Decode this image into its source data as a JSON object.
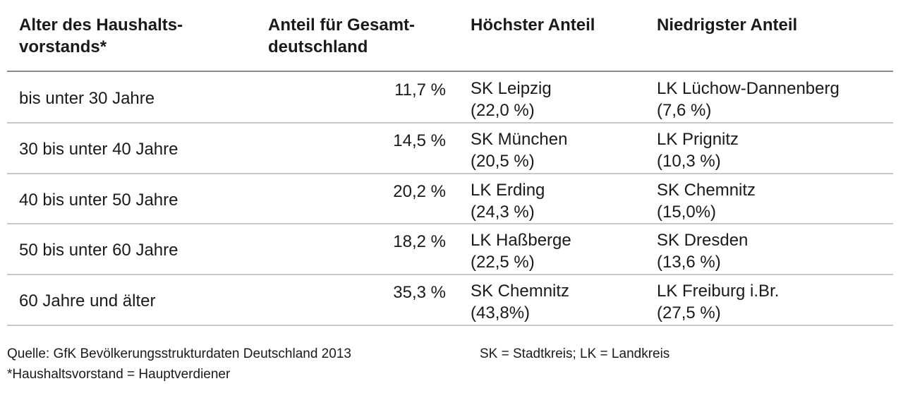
{
  "table": {
    "header": [
      [
        "Alter des Haushalts-",
        "vorstands*"
      ],
      [
        "Anteil für Gesamt-",
        "deutschland"
      ],
      [
        "Höchster Anteil"
      ],
      [
        "Niedrigster Anteil"
      ]
    ],
    "rows": [
      [
        "bis unter 30 Jahre",
        "11,7 %",
        [
          "SK Leipzig",
          "(22,0 %)"
        ],
        [
          "LK Lüchow-Dannenberg",
          "(7,6 %)"
        ]
      ],
      [
        "30 bis unter 40 Jahre",
        "14,5 %",
        [
          "SK München",
          "(20,5 %)"
        ],
        [
          "LK Prignitz",
          "(10,3 %)"
        ]
      ],
      [
        "40 bis unter 50 Jahre",
        "20,2 %",
        [
          "LK Erding",
          "(24,3 %)"
        ],
        [
          "SK Chemnitz",
          "(15,0%)"
        ]
      ],
      [
        "50 bis unter 60 Jahre",
        "18,2 %",
        [
          "LK Haßberge",
          "(22,5 %)"
        ],
        [
          "SK Dresden",
          "(13,6 %)"
        ]
      ],
      [
        "60 Jahre und älter",
        "35,3 %",
        [
          "SK Chemnitz",
          "(43,8%)"
        ],
        [
          "LK Freiburg i.Br.",
          "(27,5 %)"
        ]
      ]
    ]
  },
  "footer": {
    "source": "Quelle: GfK Bevölkerungsstrukturdaten Deutschland 2013",
    "legend": "SK = Stadtkreis; LK = Landkreis",
    "note": "*Haushaltsvorstand = Hauptverdiener"
  }
}
